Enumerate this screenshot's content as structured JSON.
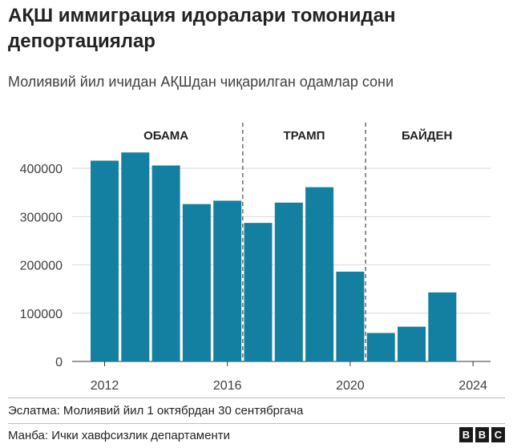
{
  "header": {
    "title": "АҚШ иммиграция идоралари томонидан депортациялар",
    "subtitle": "Молиявий йил ичидан АҚШдан чиқарилган одамлар сони"
  },
  "chart_data": {
    "type": "bar",
    "title": "АҚШ иммиграция идоралари томонидан депортациялар",
    "subtitle": "Молиявий йил ичидан АҚШдан чиқарилган одамлар сони",
    "xlabel": "",
    "ylabel": "",
    "categories": [
      2012,
      2013,
      2014,
      2015,
      2016,
      2017,
      2018,
      2019,
      2020,
      2021,
      2022,
      2023,
      2024
    ],
    "values": [
      416000,
      433000,
      406000,
      326000,
      333000,
      287000,
      329000,
      361000,
      186000,
      59000,
      72000,
      143000,
      0
    ],
    "ylim": [
      0,
      440000
    ],
    "yticks": [
      0,
      100000,
      200000,
      300000,
      400000
    ],
    "ytick_labels": [
      "0",
      "100000",
      "200000",
      "300000",
      "400000"
    ],
    "xticks": [
      2012,
      2016,
      2020,
      2024
    ],
    "xtick_labels": [
      "2012",
      "2016",
      "2020",
      "2024"
    ],
    "grid": true,
    "bar_color": "#1380A1",
    "periods": [
      {
        "label": "ОБАМА",
        "start": 2012,
        "end": 2016
      },
      {
        "label": "ТРАМП",
        "start": 2017,
        "end": 2020
      },
      {
        "label": "БАЙДЕН",
        "start": 2021,
        "end": 2024
      }
    ]
  },
  "footer": {
    "note": "Эслатма: Молиявий йил 1 октябрдан 30 сентябргача",
    "source": "Манба: Ички хавфсизлик департаменти",
    "logo": [
      "B",
      "B",
      "C"
    ]
  }
}
